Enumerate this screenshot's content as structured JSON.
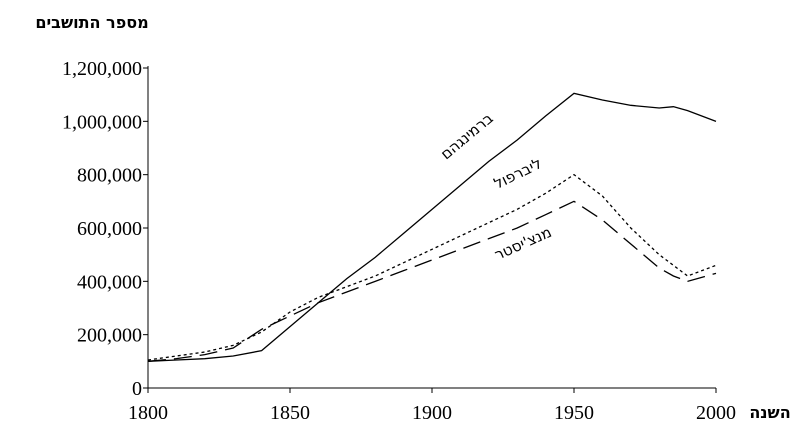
{
  "chart_data": {
    "type": "line",
    "y_axis_title": "מספר התושבים",
    "x_axis_title": "השנה",
    "xlim": [
      1800,
      2000
    ],
    "xticks": [
      1800,
      1850,
      1900,
      1950,
      2000
    ],
    "ylim": [
      0,
      1200000
    ],
    "yticks": [
      0,
      {
        "value": 200000,
        "label": "200,000"
      },
      {
        "value": 400000,
        "label": "400,000"
      },
      {
        "value": 600000,
        "label": "600,000"
      },
      {
        "value": 800000,
        "label": "800,000"
      },
      {
        "value": 1000000,
        "label": "1,000,000"
      },
      {
        "value": 1200000,
        "label": "1,200,000"
      }
    ],
    "x": [
      1800,
      1810,
      1820,
      1830,
      1840,
      1850,
      1860,
      1870,
      1880,
      1890,
      1900,
      1910,
      1920,
      1930,
      1940,
      1950,
      1960,
      1970,
      1980,
      1985,
      1990,
      2000
    ],
    "series": [
      {
        "name": "ברמינגהם",
        "color": "#000000",
        "style": "solid",
        "values": [
          100000,
          105000,
          110000,
          120000,
          140000,
          230000,
          320000,
          410000,
          490000,
          580000,
          670000,
          760000,
          850000,
          930000,
          1020000,
          1105000,
          1080000,
          1060000,
          1050000,
          1055000,
          1040000,
          1000000
        ]
      },
      {
        "name": "ליברפול",
        "color": "#000000",
        "style": "dotted",
        "values": [
          105000,
          120000,
          135000,
          160000,
          210000,
          285000,
          340000,
          380000,
          420000,
          470000,
          520000,
          570000,
          620000,
          670000,
          730000,
          800000,
          720000,
          600000,
          500000,
          460000,
          420000,
          460000
        ]
      },
      {
        "name": "מנצ'יסטר",
        "color": "#000000",
        "style": "dashed",
        "values": [
          100000,
          110000,
          125000,
          150000,
          220000,
          270000,
          320000,
          360000,
          400000,
          440000,
          480000,
          520000,
          560000,
          600000,
          650000,
          700000,
          630000,
          540000,
          450000,
          420000,
          400000,
          430000
        ]
      }
    ]
  }
}
